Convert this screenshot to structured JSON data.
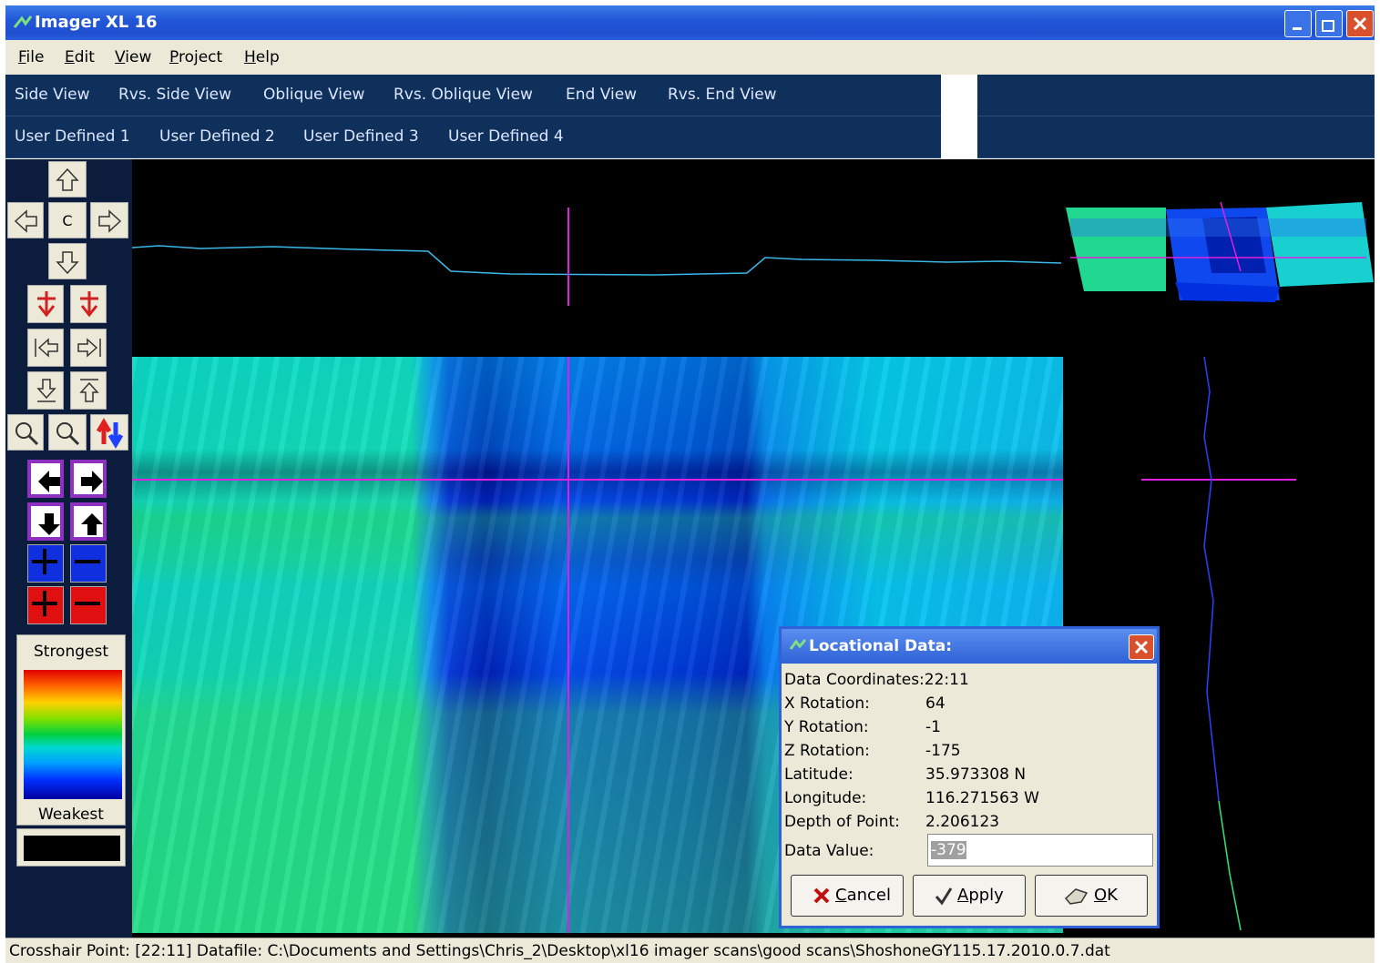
{
  "window": {
    "title": "Imager XL 16"
  },
  "menu": [
    "File",
    "Edit",
    "View",
    "Project",
    "Help"
  ],
  "views": {
    "row1": [
      "Side View",
      "Rvs. Side View",
      "Oblique View",
      "Rvs. Oblique View",
      "End View",
      "Rvs. End View"
    ],
    "row2": [
      "User Defined 1",
      "User Defined 2",
      "User Defined 3",
      "User Defined 4"
    ]
  },
  "toolbar": {
    "center": "C"
  },
  "legend": {
    "top": "Strongest",
    "bottom": "Weakest"
  },
  "dialog": {
    "title": "Locational Data:",
    "coordinates": {
      "label": "Data Coordinates:",
      "value": "22:11"
    },
    "fields": [
      {
        "label": "X Rotation:",
        "value": "64"
      },
      {
        "label": "Y Rotation:",
        "value": "-1"
      },
      {
        "label": "Z Rotation:",
        "value": "-175"
      },
      {
        "label": "Latitude:",
        "value": "35.973308 N"
      },
      {
        "label": "Longitude:",
        "value": "116.271563 W"
      },
      {
        "label": "Depth of Point:",
        "value": "2.206123"
      }
    ],
    "data_value": {
      "label": "Data Value:",
      "value": "-379"
    },
    "buttons": [
      "Cancel",
      "Apply",
      "OK"
    ]
  },
  "status": "Crosshair Point: [22:11]  Datafile: C:\\Documents and Settings\\Chris_2\\Desktop\\xl16 imager scans\\good scans\\ShoshoneGY115.17.2010.0.7.dat"
}
